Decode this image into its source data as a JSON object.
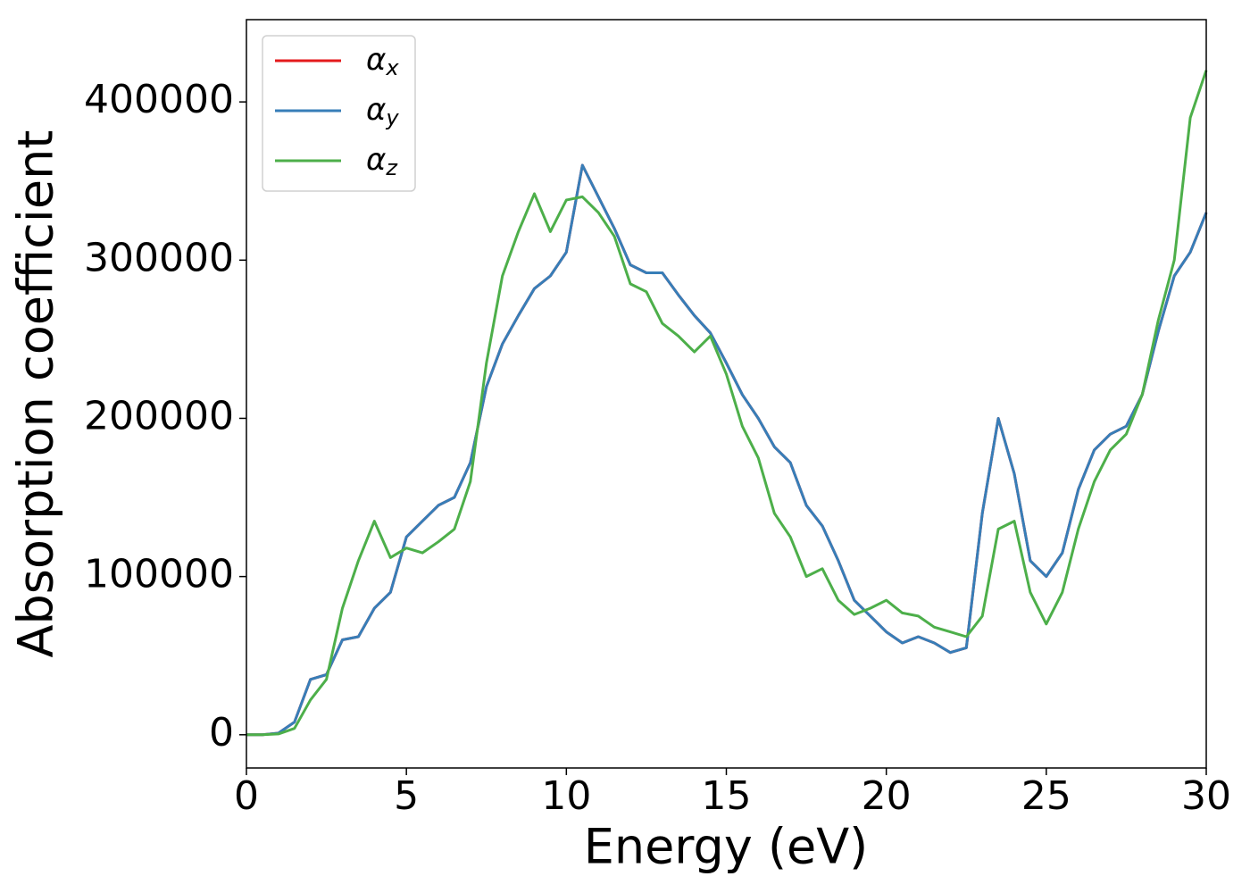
{
  "chart_data": {
    "type": "line",
    "xlabel": "Energy (eV)",
    "ylabel": "Absorption coefficient",
    "x": [
      0,
      0.5,
      1,
      1.5,
      2,
      2.5,
      3,
      3.5,
      4,
      4.5,
      5,
      5.5,
      6,
      6.5,
      7,
      7.5,
      8,
      8.5,
      9,
      9.5,
      10,
      10.5,
      11,
      11.5,
      12,
      12.5,
      13,
      13.5,
      14,
      14.5,
      15,
      15.5,
      16,
      16.5,
      17,
      17.5,
      18,
      18.5,
      19,
      19.5,
      20,
      20.5,
      21,
      21.5,
      22,
      22.5,
      23,
      23.5,
      24,
      24.5,
      25,
      25.5,
      26,
      26.5,
      27,
      27.5,
      28,
      28.5,
      29,
      29.5,
      30
    ],
    "series": [
      {
        "name": "αx",
        "color": "#e41a1c",
        "values": [
          0,
          0,
          1000,
          8000,
          35000,
          38000,
          60000,
          62000,
          80000,
          90000,
          125000,
          135000,
          145000,
          150000,
          172000,
          220000,
          247000,
          265000,
          282000,
          290000,
          305000,
          360000,
          340000,
          320000,
          297000,
          292000,
          292000,
          278000,
          265000,
          254000,
          235000,
          215000,
          200000,
          182000,
          172000,
          145000,
          132000,
          110000,
          85000,
          75000,
          65000,
          58000,
          62000,
          58000,
          52000,
          55000,
          140000,
          200000,
          165000,
          110000,
          100000,
          115000,
          155000,
          180000,
          190000,
          195000,
          215000,
          255000,
          290000,
          305000,
          330000
        ]
      },
      {
        "name": "αy",
        "color": "#377eb8",
        "values": [
          0,
          0,
          1000,
          8000,
          35000,
          38000,
          60000,
          62000,
          80000,
          90000,
          125000,
          135000,
          145000,
          150000,
          172000,
          220000,
          247000,
          265000,
          282000,
          290000,
          305000,
          360000,
          340000,
          320000,
          297000,
          292000,
          292000,
          278000,
          265000,
          254000,
          235000,
          215000,
          200000,
          182000,
          172000,
          145000,
          132000,
          110000,
          85000,
          75000,
          65000,
          58000,
          62000,
          58000,
          52000,
          55000,
          140000,
          200000,
          165000,
          110000,
          100000,
          115000,
          155000,
          180000,
          190000,
          195000,
          215000,
          255000,
          290000,
          305000,
          330000
        ]
      },
      {
        "name": "αz",
        "color": "#4daf4a",
        "values": [
          0,
          0,
          500,
          4000,
          22000,
          35000,
          80000,
          110000,
          135000,
          112000,
          118000,
          115000,
          122000,
          130000,
          160000,
          235000,
          290000,
          318000,
          342000,
          318000,
          338000,
          340000,
          330000,
          315000,
          285000,
          280000,
          260000,
          252000,
          242000,
          252000,
          228000,
          195000,
          175000,
          140000,
          125000,
          100000,
          105000,
          85000,
          76000,
          80000,
          85000,
          77000,
          75000,
          68000,
          65000,
          62000,
          75000,
          130000,
          135000,
          90000,
          70000,
          90000,
          130000,
          160000,
          180000,
          190000,
          215000,
          262000,
          300000,
          390000,
          420000
        ]
      }
    ],
    "xlim": [
      0,
      30
    ],
    "xticks": [
      0,
      5,
      10,
      15,
      20,
      25,
      30
    ],
    "ylim": [
      -21000,
      452000
    ],
    "yticks": [
      0,
      100000,
      200000,
      300000,
      400000
    ],
    "legend": "upper left"
  }
}
